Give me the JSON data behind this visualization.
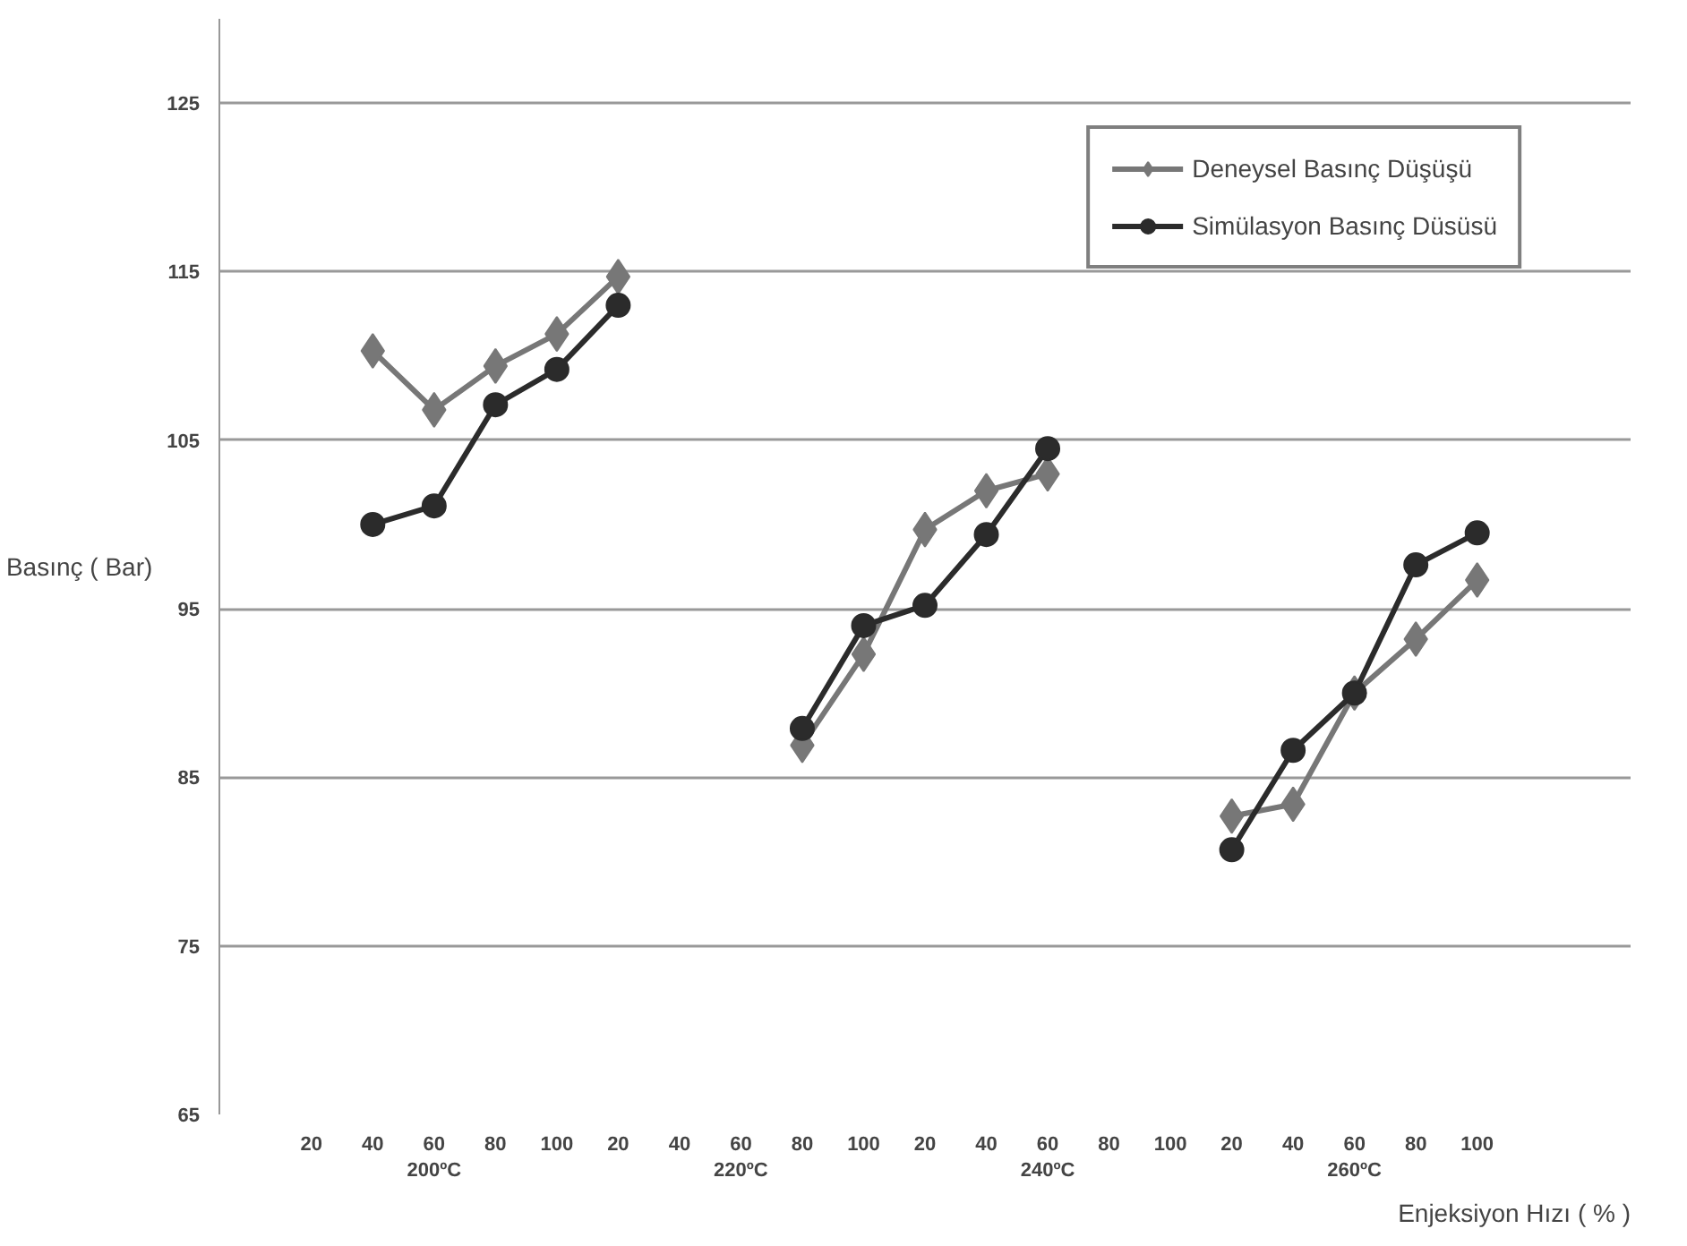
{
  "chart_data": {
    "type": "line",
    "xlabel": "Enjeksiyon Hızı ( % )",
    "ylabel": "Basınç ( Bar)",
    "categories": [
      "20",
      "40",
      "60\n200ºC",
      "80",
      "100",
      "20",
      "40",
      "60\n220ºC",
      "80",
      "100",
      "20",
      "40",
      "60\n240ºC",
      "80",
      "100",
      "20",
      "40",
      "60\n260ºC",
      "80",
      "100"
    ],
    "ylim": [
      65,
      130
    ],
    "yticks": [
      65,
      75,
      85,
      95,
      105,
      115,
      125
    ],
    "grid": "y",
    "legend": "top right",
    "line_style": "solid",
    "series": [
      {
        "name": "Deneysel Basınç Düşüşü",
        "color": "#777777",
        "marker": "diamond",
        "values": [
          null,
          110.3,
          106.8,
          109.4,
          111.3,
          114.7,
          null,
          null,
          86.9,
          92.3,
          99.7,
          102.0,
          103.0,
          null,
          null,
          82.7,
          83.4,
          90.0,
          93.2,
          96.7
        ]
      },
      {
        "name": "Simülasyon Basınç Düsüsü",
        "color": "#2b2b2b",
        "marker": "circle",
        "values": [
          null,
          100.0,
          101.1,
          107.1,
          109.2,
          113.0,
          null,
          null,
          87.9,
          94.0,
          95.2,
          99.4,
          104.5,
          null,
          null,
          80.7,
          86.6,
          90.0,
          97.6,
          99.5
        ]
      }
    ]
  }
}
